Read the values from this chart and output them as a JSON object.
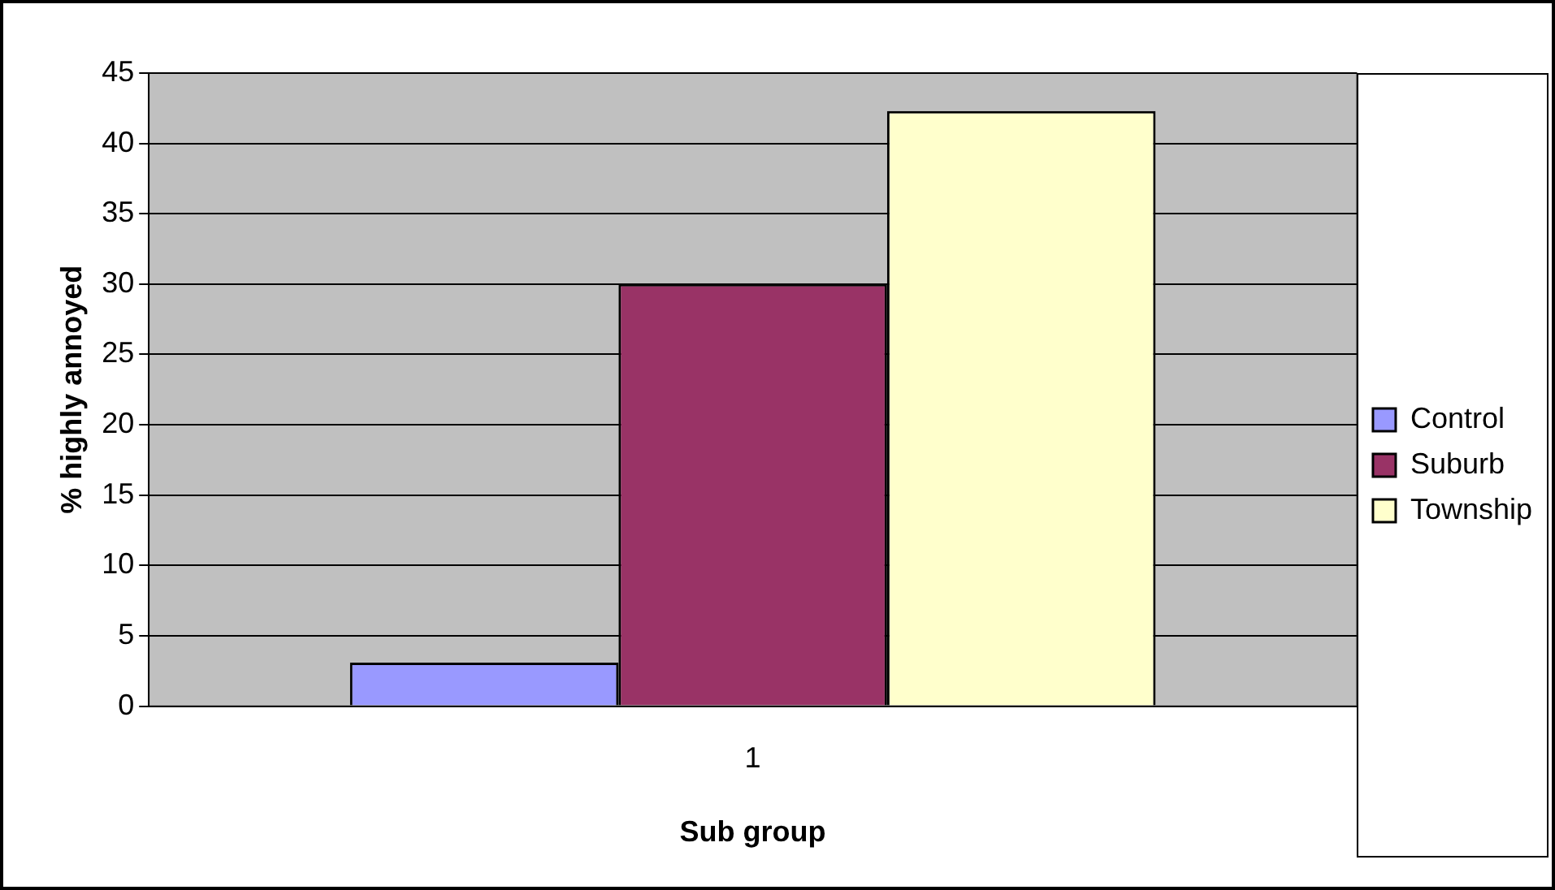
{
  "chart_data": {
    "type": "bar",
    "xlabel": "Sub group",
    "ylabel": "% highly annoyed",
    "categories": [
      "1"
    ],
    "series": [
      {
        "name": "Control",
        "color": "#9999ff",
        "values": [
          3.1
        ]
      },
      {
        "name": "Suburb",
        "color": "#993366",
        "values": [
          30
        ]
      },
      {
        "name": "Township",
        "color": "#ffffcc",
        "values": [
          42.3
        ]
      }
    ],
    "ylim": [
      0,
      45
    ],
    "yticks": [
      0,
      5,
      10,
      15,
      20,
      25,
      30,
      35,
      40,
      45
    ],
    "grid": "y",
    "legend": "right"
  }
}
